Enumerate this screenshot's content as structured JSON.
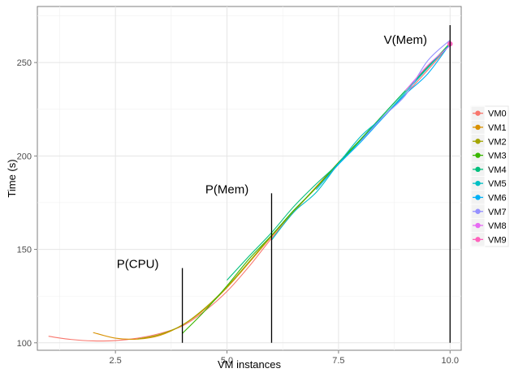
{
  "chart_data": {
    "type": "line",
    "title": "",
    "xlabel": "VM instances",
    "ylabel": "Time (s)",
    "xlim": [
      0.75,
      10.25
    ],
    "ylim": [
      96,
      280
    ],
    "xticks": [
      2.5,
      5.0,
      7.5,
      10.0
    ],
    "xtick_labels": [
      "2.5",
      "5.0",
      "7.5",
      "10.0"
    ],
    "yticks": [
      100,
      150,
      200,
      250
    ],
    "ytick_labels": [
      "100",
      "150",
      "200",
      "250"
    ],
    "grid": true,
    "legend_position": "right",
    "series": [
      {
        "name": "VM0",
        "color": "#F8766D",
        "x": [
          1,
          1.5,
          2,
          2.5,
          3,
          3.5,
          4,
          4.5,
          5,
          5.5,
          6,
          6.5,
          7,
          7.5,
          8,
          8.5,
          9,
          9.5,
          10
        ],
        "y": [
          103.5,
          101.8,
          101.0,
          101.2,
          102.5,
          105.0,
          109.0,
          117.0,
          127.5,
          141.0,
          156.0,
          170.0,
          183.5,
          196.5,
          209.0,
          221.0,
          233.0,
          246.0,
          259.5
        ]
      },
      {
        "name": "VM1",
        "color": "#D89000",
        "x": [
          2,
          2.5,
          3,
          3.5,
          4,
          4.5,
          5,
          5.5,
          6,
          6.5,
          7,
          7.5,
          8,
          8.5,
          9,
          9.5,
          10
        ],
        "y": [
          105.5,
          102.5,
          102.0,
          104.0,
          109.5,
          118.0,
          129.5,
          143.0,
          157.0,
          170.5,
          183.5,
          196.5,
          209.0,
          222.0,
          235.0,
          248.0,
          260.0
        ]
      },
      {
        "name": "VM2",
        "color": "#A3A500",
        "x": [
          3,
          3.5,
          4,
          4.5,
          5,
          5.5,
          6,
          6.5,
          7,
          7.5,
          8,
          8.5,
          9,
          9.5,
          10
        ],
        "y": [
          102.0,
          104.5,
          109.5,
          118.5,
          130.0,
          143.5,
          157.5,
          170.5,
          183.0,
          196.0,
          209.0,
          222.0,
          235.0,
          247.5,
          259.5
        ]
      },
      {
        "name": "VM3",
        "color": "#39B600",
        "x": [
          4,
          4.5,
          5,
          5.5,
          6,
          6.5,
          7,
          7.5,
          8,
          8.5,
          9,
          9.5,
          10
        ],
        "y": [
          105.0,
          117.0,
          130.5,
          145.0,
          157.5,
          171.0,
          183.0,
          196.5,
          209.0,
          222.0,
          235.0,
          247.5,
          260.5
        ]
      },
      {
        "name": "VM4",
        "color": "#00BF7D",
        "x": [
          5,
          5.5,
          6,
          6.5,
          7,
          7.5,
          8,
          8.5,
          9,
          9.5,
          10
        ],
        "y": [
          133.5,
          146.5,
          159.0,
          173.0,
          185.0,
          196.0,
          208.5,
          222.0,
          235.0,
          247.5,
          260.0
        ]
      },
      {
        "name": "VM5",
        "color": "#00BFC4",
        "x": [
          6,
          6.5,
          7,
          7.5,
          8,
          8.5,
          9,
          9.5,
          10
        ],
        "y": [
          155.0,
          170.0,
          180.5,
          196.0,
          210.5,
          221.0,
          234.0,
          247.0,
          260.0
        ]
      },
      {
        "name": "VM6",
        "color": "#00B0F6",
        "x": [
          7,
          7.5,
          8,
          8.5,
          9,
          9.5,
          10
        ],
        "y": [
          182.0,
          195.5,
          207.5,
          220.5,
          233.0,
          244.0,
          260.0
        ]
      },
      {
        "name": "VM7",
        "color": "#9590FF",
        "x": [
          8,
          8.5,
          9,
          9.5,
          10
        ],
        "y": [
          208.0,
          221.0,
          232.5,
          251.0,
          262.0
        ]
      },
      {
        "name": "VM8",
        "color": "#E76BF3",
        "x": [
          9,
          9.5,
          10
        ],
        "y": [
          235.0,
          248.5,
          259.0
        ]
      },
      {
        "name": "VM9",
        "color": "#FF62BC",
        "x": [
          10
        ],
        "y": [
          260.0
        ]
      }
    ],
    "vertical_segments": [
      {
        "x": 4,
        "y_from": 100,
        "y_to": 140
      },
      {
        "x": 6,
        "y_from": 100,
        "y_to": 180
      },
      {
        "x": 10,
        "y_from": 100,
        "y_to": 270
      }
    ],
    "annotations": [
      {
        "text": "P(CPU)",
        "x": 3.0,
        "y": 140
      },
      {
        "text": "P(Mem)",
        "x": 5.0,
        "y": 180
      },
      {
        "text": "V(Mem)",
        "x": 9.0,
        "y": 260
      }
    ]
  }
}
